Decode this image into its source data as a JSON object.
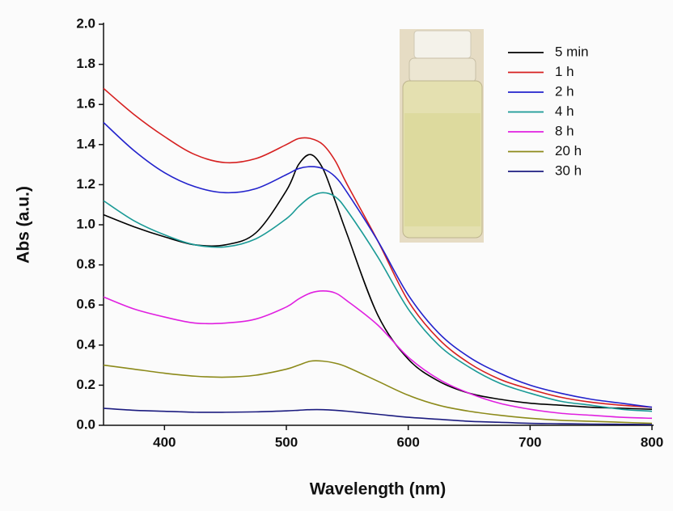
{
  "chart_data": {
    "type": "line",
    "xlabel": "Wavelength (nm)",
    "ylabel": "Abs (a.u.)",
    "x": [
      350,
      375,
      400,
      425,
      450,
      475,
      500,
      510,
      520,
      530,
      540,
      550,
      575,
      600,
      625,
      650,
      675,
      700,
      725,
      750,
      775,
      800
    ],
    "series": [
      {
        "name": "5 min",
        "color": "#000000",
        "values": [
          1.05,
          0.99,
          0.94,
          0.9,
          0.9,
          0.96,
          1.17,
          1.3,
          1.35,
          1.28,
          1.12,
          0.95,
          0.55,
          0.33,
          0.22,
          0.16,
          0.13,
          0.11,
          0.1,
          0.09,
          0.085,
          0.08
        ]
      },
      {
        "name": "1 h",
        "color": "#d62020",
        "values": [
          1.68,
          1.55,
          1.44,
          1.35,
          1.31,
          1.33,
          1.4,
          1.43,
          1.43,
          1.4,
          1.32,
          1.2,
          0.92,
          0.62,
          0.43,
          0.31,
          0.23,
          0.18,
          0.14,
          0.115,
          0.1,
          0.09
        ]
      },
      {
        "name": "2 h",
        "color": "#2222cc",
        "values": [
          1.51,
          1.37,
          1.26,
          1.19,
          1.16,
          1.18,
          1.25,
          1.28,
          1.29,
          1.28,
          1.24,
          1.16,
          0.92,
          0.65,
          0.46,
          0.34,
          0.26,
          0.2,
          0.16,
          0.13,
          0.11,
          0.09
        ]
      },
      {
        "name": "4 h",
        "color": "#1a9a96",
        "values": [
          1.12,
          1.02,
          0.95,
          0.9,
          0.89,
          0.93,
          1.03,
          1.09,
          1.14,
          1.16,
          1.14,
          1.07,
          0.84,
          0.58,
          0.4,
          0.29,
          0.21,
          0.16,
          0.12,
          0.1,
          0.08,
          0.07
        ]
      },
      {
        "name": "8 h",
        "color": "#e020e0",
        "values": [
          0.64,
          0.58,
          0.54,
          0.51,
          0.51,
          0.53,
          0.59,
          0.63,
          0.66,
          0.67,
          0.66,
          0.62,
          0.5,
          0.34,
          0.23,
          0.16,
          0.11,
          0.08,
          0.06,
          0.05,
          0.04,
          0.035
        ]
      },
      {
        "name": "20 h",
        "color": "#8c8a1a",
        "values": [
          0.3,
          0.28,
          0.26,
          0.245,
          0.24,
          0.25,
          0.28,
          0.3,
          0.32,
          0.32,
          0.31,
          0.29,
          0.22,
          0.15,
          0.1,
          0.07,
          0.05,
          0.035,
          0.025,
          0.02,
          0.015,
          0.01
        ]
      },
      {
        "name": "30 h",
        "color": "#1c1c80",
        "values": [
          0.085,
          0.075,
          0.07,
          0.065,
          0.065,
          0.067,
          0.072,
          0.075,
          0.078,
          0.078,
          0.075,
          0.07,
          0.055,
          0.04,
          0.03,
          0.02,
          0.015,
          0.01,
          0.008,
          0.006,
          0.005,
          0.004
        ]
      }
    ],
    "xlim": [
      350,
      800
    ],
    "xticks": [
      400,
      500,
      600,
      700,
      800
    ],
    "ylim": [
      0,
      2
    ],
    "yticks": [
      {
        "value": 0,
        "label": "0.0"
      },
      0.2,
      0.4,
      0.6,
      0.8,
      {
        "value": 1,
        "label": "1.0"
      },
      1.2,
      1.4,
      1.6,
      1.8,
      {
        "value": 2,
        "label": "2.0"
      }
    ],
    "grid": false,
    "legend": "upper right"
  }
}
